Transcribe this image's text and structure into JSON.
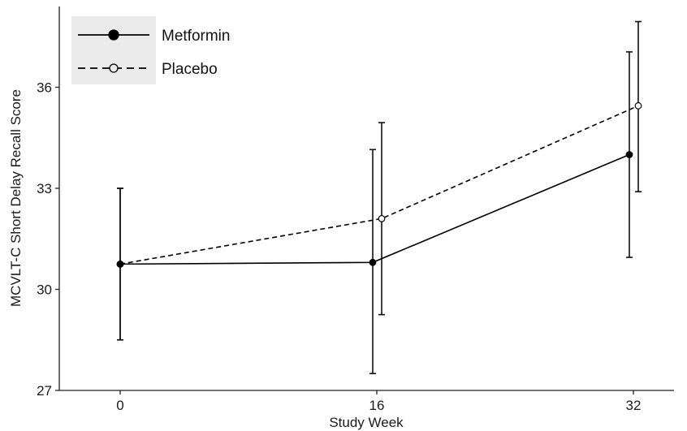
{
  "chart_data": {
    "type": "line",
    "title": "",
    "xlabel": "Study Week",
    "ylabel": "MCVLT-C Short Delay Recall Score",
    "x": [
      0,
      16,
      32
    ],
    "x_tick_labels": [
      "0",
      "16",
      "32"
    ],
    "ylim": [
      27,
      38.5
    ],
    "y_ticks": [
      27,
      30,
      33,
      36
    ],
    "y_tick_labels": [
      "27",
      "30",
      "33",
      "36"
    ],
    "grid": false,
    "legend_position": "top-left",
    "series": [
      {
        "name": "Metformin",
        "line_style": "solid",
        "marker": "filled-circle",
        "color": "#000000",
        "values": [
          30.75,
          30.8,
          34.0
        ],
        "error_low": [
          28.5,
          27.5,
          30.95
        ],
        "error_high": [
          33.0,
          34.15,
          37.05
        ]
      },
      {
        "name": "Placebo",
        "line_style": "dashed",
        "marker": "open-circle",
        "color": "#000000",
        "values": [
          30.75,
          32.1,
          35.45
        ],
        "error_low": [
          28.5,
          29.25,
          32.9
        ],
        "error_high": [
          33.0,
          34.95,
          37.95
        ]
      }
    ]
  }
}
